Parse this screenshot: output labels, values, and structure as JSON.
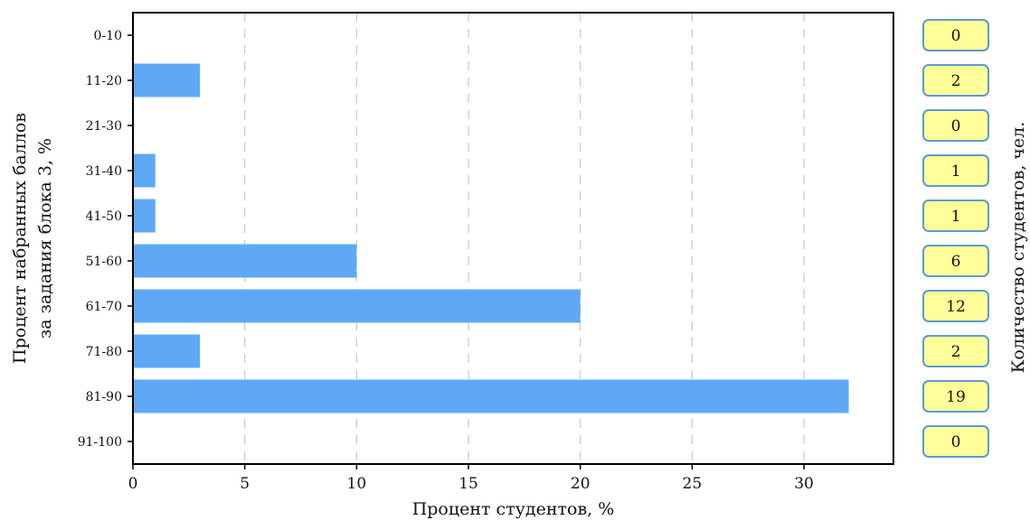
{
  "chart_data": {
    "type": "bar",
    "orientation": "horizontal",
    "categories": [
      "0-10",
      "11-20",
      "21-30",
      "31-40",
      "41-50",
      "51-60",
      "61-70",
      "71-80",
      "81-90",
      "91-100"
    ],
    "values": [
      0,
      3,
      0,
      1,
      1,
      10,
      20,
      3,
      32,
      0
    ],
    "counts": [
      "0",
      "2",
      "0",
      "1",
      "1",
      "6",
      "12",
      "2",
      "19",
      "0"
    ],
    "xlabel": "Процент студентов, %",
    "ylabel_line1": "Процент набранных баллов",
    "ylabel_line2": "за задания блока 3, %",
    "right_label": "Количество студентов, чел.",
    "xlim": [
      0,
      34
    ],
    "xticks": [
      "0",
      "5",
      "10",
      "15",
      "20",
      "25",
      "30"
    ],
    "grid": "vertical dashed",
    "colors": {
      "bar": "#5fa8f5",
      "count_box_fill": "#ffff99",
      "count_box_stroke": "#5b9bd5",
      "grid": "#c8c8c8"
    }
  }
}
